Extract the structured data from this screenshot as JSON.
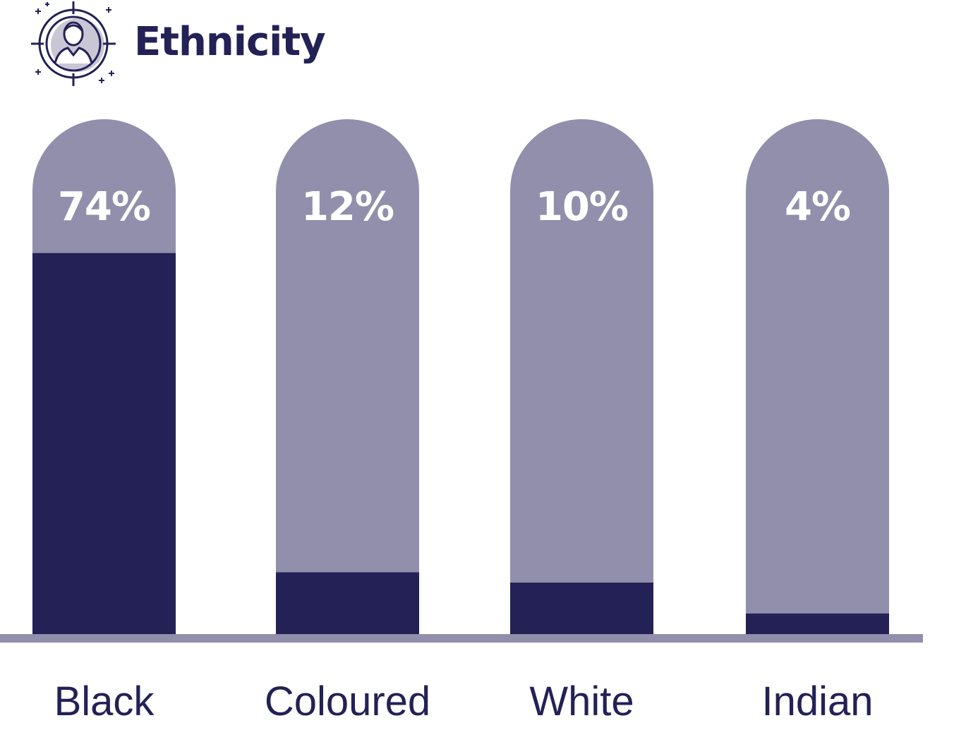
{
  "header": {
    "title": "Ethnicity",
    "icon": "person-target-icon"
  },
  "colors": {
    "filled": "#232155",
    "track": "#918FAB",
    "baseline": "#918FAB",
    "text": "#232155",
    "value_text": "#ffffff"
  },
  "chart_data": {
    "type": "bar",
    "title": "Ethnicity",
    "categories": [
      "Black",
      "Coloured",
      "White",
      "Indian"
    ],
    "values": [
      74,
      12,
      10,
      4
    ],
    "value_labels": [
      "74%",
      "12%",
      "10%",
      "4%"
    ],
    "unit": "%",
    "ylim": [
      0,
      100
    ],
    "grid": false,
    "legend": "none"
  }
}
